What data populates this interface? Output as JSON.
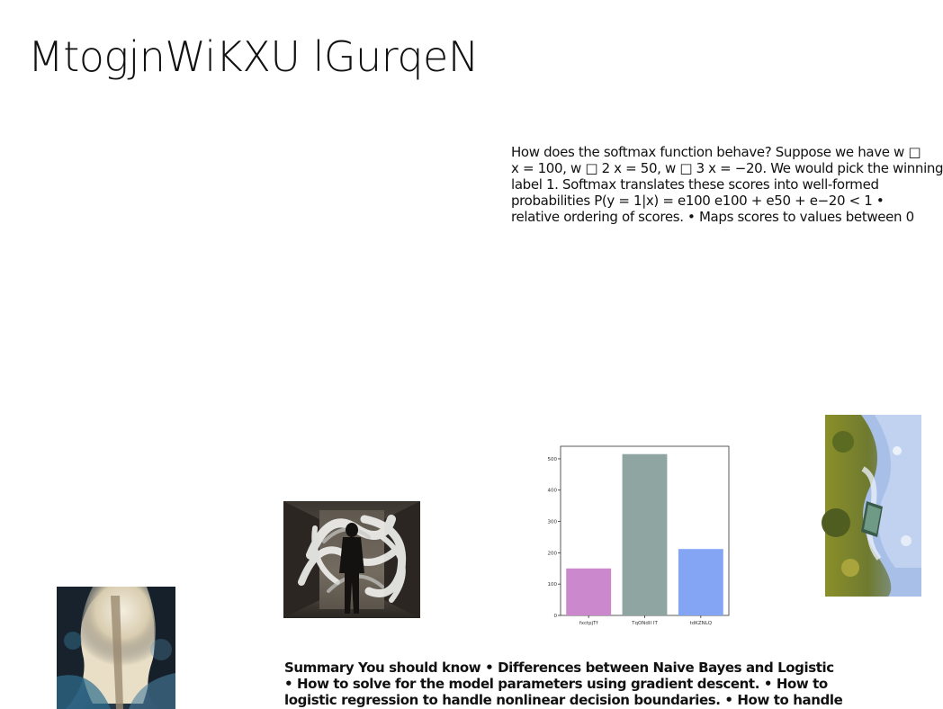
{
  "page": {
    "title": "MtogjnWiKXU lGurqeN"
  },
  "softmax_paragraph": {
    "lines": [
      "How does the softmax function behave? Suppose we have w □",
      "x = 100, w □ 2 x = 50, w □ 3 x = −20. We would pick the winning",
      "label 1. Softmax translates these scores into well-formed",
      "probabilities P(y = 1|x) = e100 e100 + e50 + e−20 < 1 •",
      "relative ordering of scores. • Maps scores to values between 0"
    ]
  },
  "summary_paragraph": {
    "lines": [
      "Summary You should know • Differences between Naive Bayes and Logistic",
      "• How to solve for the model parameters using gradient descent. • How to",
      "logistic regression to handle nonlinear decision boundaries. • How to handle"
    ]
  },
  "images": {
    "cave": "cave-photo",
    "tunnel": "light-painting-photo",
    "aerial": "aerial-coast-photo"
  },
  "chart_data": {
    "type": "bar",
    "categories": [
      "fxctpjTf",
      "TqONdII IT",
      "tdKZNLQ"
    ],
    "values": [
      150,
      515,
      212
    ],
    "colors": [
      "#cc88cc",
      "#8fa5a2",
      "#84a4f4"
    ],
    "ylim": [
      0,
      540
    ],
    "yticks": [
      0,
      100,
      200,
      300,
      400,
      500
    ],
    "grid": false,
    "title": "",
    "xlabel": "",
    "ylabel": ""
  }
}
